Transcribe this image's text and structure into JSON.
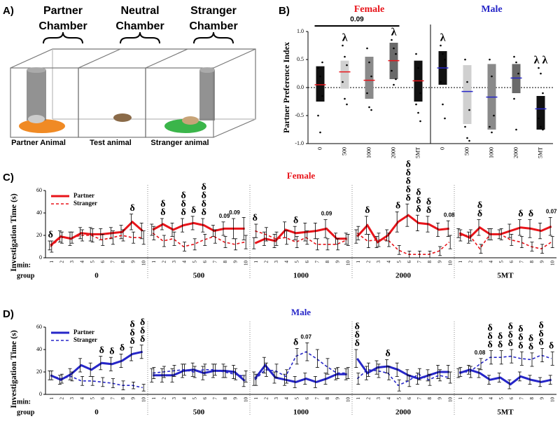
{
  "panel_a": {
    "label": "A)",
    "chambers": [
      [
        "Partner",
        "Chamber"
      ],
      [
        "Neutral",
        "Chamber"
      ],
      [
        "Stranger",
        "Chamber"
      ]
    ],
    "animals": [
      "Partner Animal",
      "Test animal",
      "Stranger animal"
    ]
  },
  "chart_data": [
    {
      "type": "range-bar",
      "panel_label": "B)",
      "ylabel": "Partner Preference Index",
      "ylim": [
        -1,
        1
      ],
      "yticks": [
        {
          "value": -1,
          "label": "-1.0"
        },
        {
          "value": -0.5,
          "label": "-0.5"
        },
        {
          "value": 0,
          "label": "0.0"
        },
        {
          "value": 0.5,
          "label": "0.5"
        },
        {
          "value": 1,
          "label": "1.0"
        }
      ],
      "zero_line": true,
      "groups": [
        {
          "name": "Female",
          "color": "#e8141a",
          "mean_color": "#e8141a",
          "bracket_label": "0.09",
          "categories": [
            "0",
            "500",
            "1000",
            "2000",
            "5MT"
          ],
          "bar_colors": [
            "#111111",
            "#d0d0d0",
            "#8a8a8a",
            "#6a6a6a",
            "#111111"
          ],
          "low": [
            -0.25,
            -0.02,
            -0.2,
            0.15,
            -0.25
          ],
          "high": [
            0.38,
            0.48,
            0.55,
            0.8,
            0.48
          ],
          "mean": [
            0.05,
            0.28,
            0.13,
            0.48,
            0.12
          ],
          "points": [
            [
              0.35,
              0.2,
              -0.15,
              -0.5,
              -0.8,
              0.45
            ],
            [
              0.75,
              0.55,
              0.4,
              0.1,
              -0.2,
              -0.3
            ],
            [
              0.7,
              0.45,
              0.2,
              -0.1,
              -0.35,
              -0.4
            ],
            [
              0.85,
              0.7,
              0.6,
              0.3,
              0.05,
              0.15
            ],
            [
              0.6,
              0.35,
              -0.1,
              -0.3,
              -0.45,
              -0.6
            ]
          ],
          "marks": [
            null,
            "λ",
            null,
            "λ",
            null
          ]
        },
        {
          "name": "Male",
          "color": "#2626c8",
          "mean_color": "#2626c8",
          "categories": [
            "0",
            "500",
            "1000",
            "2000",
            "5MT"
          ],
          "bar_colors": [
            "#111111",
            "#d0d0d0",
            "#8a8a8a",
            "#6a6a6a",
            "#111111"
          ],
          "low": [
            0.05,
            -0.65,
            -0.75,
            -0.1,
            -0.75
          ],
          "high": [
            0.65,
            0.4,
            0.42,
            0.42,
            -0.15
          ],
          "mean": [
            0.35,
            -0.07,
            -0.17,
            0.17,
            -0.38
          ],
          "points": [
            [
              0.75,
              0.6,
              0.5,
              0.1,
              -0.3,
              -0.55
            ],
            [
              0.5,
              0.1,
              -0.4,
              -0.7,
              -0.9,
              -0.95
            ],
            [
              0.5,
              0.2,
              -0.5,
              -0.7,
              -0.8
            ],
            [
              0.55,
              0.45,
              0.25,
              -0.2,
              -0.75
            ],
            [
              0.35,
              0.25,
              -0.1,
              -0.55,
              -0.7,
              -0.75
            ]
          ],
          "marks": [
            "λ",
            null,
            null,
            null,
            "λ λ"
          ]
        }
      ]
    },
    {
      "type": "line",
      "panel_label": "C)",
      "title": "Female",
      "title_color": "#e8141a",
      "ylabel": "Investigation Time (s)",
      "ylim": [
        0,
        60
      ],
      "yticks": [
        0,
        20,
        40,
        60
      ],
      "x_row_labels": [
        "min:",
        "group"
      ],
      "minutes": [
        1,
        2,
        3,
        4,
        5,
        6,
        7,
        8,
        9,
        10
      ],
      "groups": [
        "0",
        "500",
        "1000",
        "2000",
        "5MT"
      ],
      "legend": "upper left",
      "series": [
        {
          "name": "Partner",
          "color": "#e8141a",
          "dash": false,
          "values": [
            11,
            19,
            17,
            22,
            21,
            21,
            22,
            23,
            32,
            24,
            25,
            30,
            25,
            29,
            31,
            29,
            24,
            26,
            26,
            26,
            13,
            17,
            15,
            25,
            22,
            23,
            24,
            26,
            17,
            17,
            19,
            29,
            14,
            20,
            32,
            38,
            31,
            30,
            25,
            26,
            22,
            18,
            27,
            21,
            21,
            24,
            27,
            26,
            24,
            28
          ],
          "errors": [
            4,
            5,
            6,
            5,
            6,
            5,
            5,
            6,
            7,
            7,
            5,
            5,
            6,
            6,
            6,
            6,
            5,
            6,
            9,
            10,
            5,
            6,
            6,
            7,
            6,
            8,
            7,
            8,
            5,
            5,
            6,
            8,
            5,
            5,
            9,
            10,
            7,
            7,
            6,
            7,
            4,
            5,
            7,
            5,
            4,
            6,
            7,
            8,
            7,
            8
          ]
        },
        {
          "name": "Stranger",
          "color": "#e8141a",
          "dash": true,
          "values": [
            10,
            18,
            18,
            20,
            20,
            16,
            18,
            20,
            18,
            18,
            22,
            15,
            17,
            10,
            12,
            16,
            19,
            14,
            12,
            14,
            24,
            21,
            17,
            18,
            14,
            18,
            12,
            12,
            12,
            16,
            22,
            15,
            16,
            16,
            7,
            3,
            3,
            3,
            6,
            14,
            20,
            20,
            8,
            21,
            21,
            16,
            14,
            10,
            8,
            14
          ],
          "errors": [
            5,
            5,
            5,
            5,
            6,
            5,
            6,
            5,
            5,
            6,
            6,
            5,
            6,
            4,
            5,
            5,
            6,
            5,
            5,
            6,
            6,
            6,
            6,
            6,
            5,
            6,
            5,
            5,
            5,
            5,
            6,
            6,
            6,
            6,
            4,
            3,
            3,
            3,
            4,
            6,
            5,
            5,
            4,
            5,
            5,
            5,
            5,
            4,
            4,
            5
          ]
        }
      ],
      "marks": [
        [
          "δ"
        ],
        null,
        null,
        null,
        null,
        null,
        null,
        null,
        [
          "δ"
        ],
        null,
        null,
        [
          "δ",
          "δ"
        ],
        null,
        [
          "δ",
          "δ",
          "δ"
        ],
        [
          "δ"
        ],
        [
          "δ",
          "δ",
          "δ",
          "δ"
        ],
        null,
        [
          "0.09"
        ],
        [
          "0.09"
        ],
        null,
        [
          "δ"
        ],
        null,
        null,
        null,
        [
          "δ"
        ],
        null,
        null,
        [
          "0.09"
        ],
        null,
        null,
        null,
        [
          "δ"
        ],
        null,
        null,
        [
          "δ"
        ],
        [
          "δ",
          "δ",
          "δ",
          "δ",
          "δ"
        ],
        [
          "δ",
          "δ",
          "δ"
        ],
        [
          "δ",
          "δ"
        ],
        null,
        [
          "0.08"
        ],
        null,
        null,
        [
          "δ",
          "δ"
        ],
        null,
        null,
        null,
        [
          "δ"
        ],
        [
          "δ"
        ],
        null,
        [
          "0.07"
        ]
      ]
    },
    {
      "type": "line",
      "panel_label": "D)",
      "title": "Male",
      "title_color": "#2626c8",
      "ylabel": "Investigation Time (s)",
      "ylim": [
        0,
        60
      ],
      "yticks": [
        0,
        20,
        40,
        60
      ],
      "x_row_labels": [
        "min:",
        "group"
      ],
      "minutes": [
        1,
        2,
        3,
        4,
        5,
        6,
        7,
        8,
        9,
        10
      ],
      "groups": [
        "0",
        "500",
        "1000",
        "2000",
        "5MT"
      ],
      "legend": "upper left",
      "series": [
        {
          "name": "Partner",
          "color": "#2626c8",
          "dash": false,
          "values": [
            17,
            13,
            18,
            26,
            22,
            28,
            27,
            30,
            36,
            38,
            17,
            17,
            17,
            21,
            22,
            19,
            21,
            21,
            20,
            12,
            14,
            26,
            15,
            13,
            11,
            14,
            11,
            14,
            18,
            18,
            32,
            19,
            24,
            25,
            22,
            17,
            14,
            17,
            20,
            20,
            19,
            22,
            19,
            13,
            15,
            9,
            16,
            13,
            11,
            13
          ],
          "errors": [
            4,
            4,
            5,
            6,
            6,
            6,
            6,
            6,
            6,
            6,
            6,
            6,
            6,
            6,
            6,
            6,
            6,
            6,
            6,
            5,
            6,
            7,
            5,
            5,
            5,
            5,
            5,
            5,
            5,
            5,
            8,
            6,
            6,
            6,
            6,
            5,
            5,
            5,
            6,
            6,
            4,
            4,
            4,
            4,
            4,
            4,
            4,
            4,
            4,
            4
          ]
        },
        {
          "name": "Stranger",
          "color": "#2626c8",
          "dash": true,
          "values": [
            17,
            14,
            16,
            12,
            12,
            11,
            10,
            8,
            8,
            6,
            19,
            20,
            21,
            22,
            20,
            22,
            22,
            20,
            18,
            16,
            13,
            22,
            21,
            16,
            34,
            38,
            32,
            25,
            19,
            19,
            14,
            22,
            21,
            19,
            8,
            12,
            18,
            13,
            17,
            15,
            20,
            20,
            27,
            33,
            33,
            34,
            32,
            31,
            35,
            32
          ],
          "errors": [
            4,
            4,
            4,
            4,
            4,
            4,
            4,
            4,
            3,
            3,
            5,
            5,
            5,
            5,
            5,
            5,
            5,
            5,
            5,
            5,
            5,
            6,
            6,
            6,
            7,
            8,
            8,
            7,
            5,
            5,
            5,
            6,
            6,
            6,
            5,
            5,
            5,
            5,
            5,
            5,
            4,
            5,
            5,
            6,
            6,
            6,
            6,
            6,
            6,
            6
          ]
        }
      ],
      "marks": [
        null,
        null,
        null,
        null,
        null,
        [
          "δ"
        ],
        [
          "δ"
        ],
        [
          "δ"
        ],
        [
          "δ",
          "δ",
          "δ"
        ],
        [
          "δ",
          "δ",
          "δ"
        ],
        null,
        null,
        null,
        null,
        null,
        null,
        null,
        null,
        null,
        null,
        null,
        null,
        null,
        null,
        [
          "δ"
        ],
        [
          "0.07"
        ],
        null,
        null,
        null,
        null,
        [
          "δ",
          "δ",
          "δ"
        ],
        null,
        null,
        [
          "δ"
        ],
        null,
        null,
        null,
        null,
        null,
        null,
        null,
        null,
        [
          "0.08"
        ],
        [
          "δ",
          "δ",
          "δ"
        ],
        [
          "δ",
          "δ"
        ],
        [
          "δ",
          "δ",
          "δ"
        ],
        [
          "δ",
          "δ",
          "δ"
        ],
        [
          "δ",
          "δ"
        ],
        [
          "δ",
          "δ",
          "δ"
        ],
        [
          "δ"
        ]
      ]
    }
  ]
}
